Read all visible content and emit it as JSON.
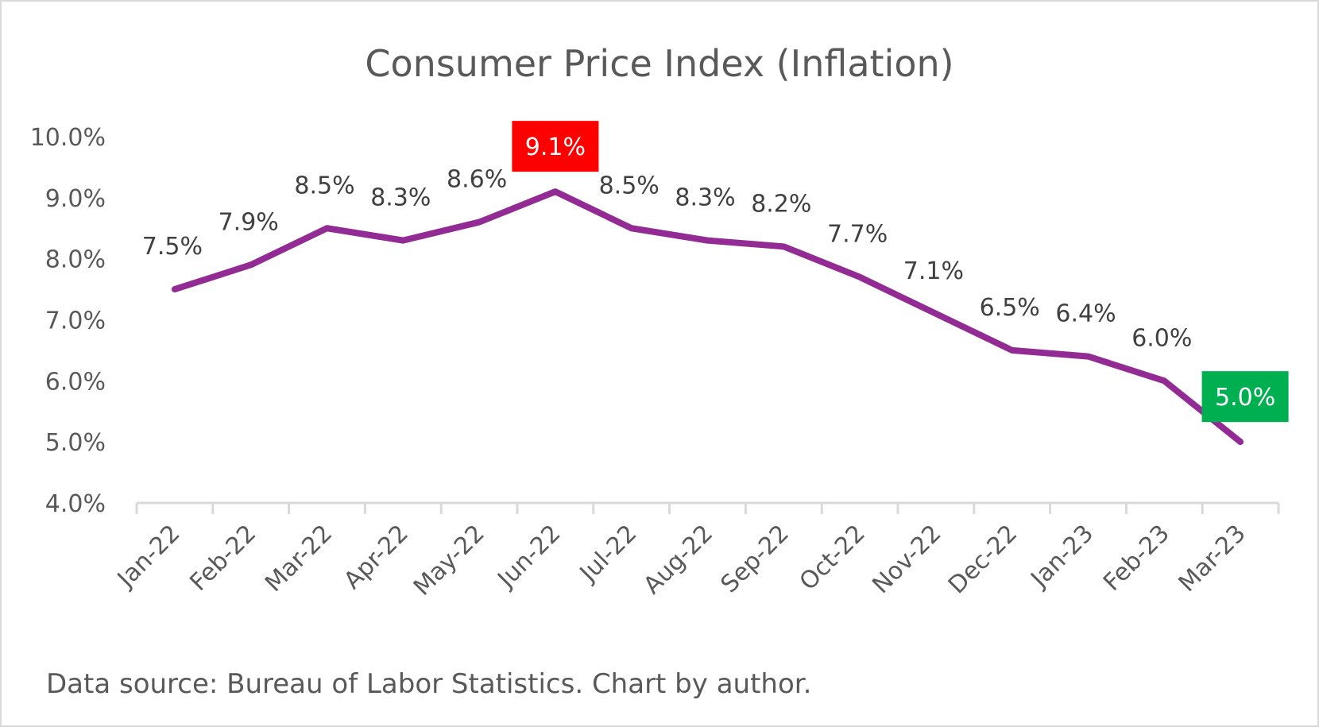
{
  "chart_data": {
    "type": "line",
    "title": "Consumer Price Index (Inflation)",
    "xlabel": "",
    "ylabel": "",
    "categories": [
      "Jan-22",
      "Feb-22",
      "Mar-22",
      "Apr-22",
      "May-22",
      "Jun-22",
      "Jul-22",
      "Aug-22",
      "Sep-22",
      "Oct-22",
      "Nov-22",
      "Dec-22",
      "Jan-23",
      "Feb-23",
      "Mar-23"
    ],
    "series": [
      {
        "name": "CPI",
        "color": "#922b93",
        "values": [
          7.5,
          7.9,
          8.5,
          8.3,
          8.6,
          9.1,
          8.5,
          8.3,
          8.2,
          7.7,
          7.1,
          6.5,
          6.4,
          6.0,
          5.0
        ],
        "data_labels": [
          "7.5%",
          "7.9%",
          "8.5%",
          "8.3%",
          "8.6%",
          "9.1%",
          "8.5%",
          "8.3%",
          "8.2%",
          "7.7%",
          "7.1%",
          "6.5%",
          "6.4%",
          "6.0%",
          "5.0%"
        ]
      }
    ],
    "ylim": [
      4.0,
      10.0
    ],
    "yticks": [
      4.0,
      5.0,
      6.0,
      7.0,
      8.0,
      9.0,
      10.0
    ],
    "ytick_labels": [
      "4.0%",
      "5.0%",
      "6.0%",
      "7.0%",
      "8.0%",
      "9.0%",
      "10.0%"
    ],
    "grid": false,
    "legend": "none",
    "highlights": [
      {
        "category": "Jun-22",
        "label": "9.1%",
        "color": "#ff0000",
        "meaning": "peak"
      },
      {
        "category": "Mar-23",
        "label": "5.0%",
        "color": "#00b050",
        "meaning": "latest"
      }
    ],
    "annotations": [
      "Data source: Bureau of Labor Statistics. Chart by author."
    ]
  },
  "footer": {
    "source_text": "Data source: Bureau of Labor Statistics. Chart by author."
  }
}
